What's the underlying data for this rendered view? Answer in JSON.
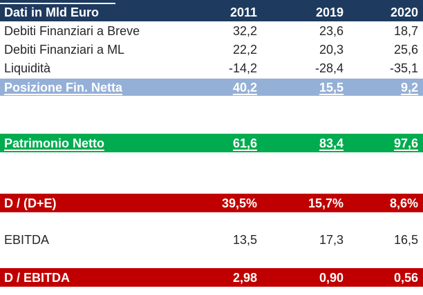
{
  "colors": {
    "navy": "#1e3a5f",
    "blue": "#95b0d7",
    "green": "#00ac4f",
    "red": "#c00000",
    "text": "#262626"
  },
  "table": {
    "header": {
      "label": "Dati in Mld Euro",
      "years": [
        "2011",
        "2019",
        "2020"
      ]
    },
    "rows": [
      {
        "label": "Debiti Finanziari a Breve",
        "values": [
          "32,2",
          "23,6",
          "18,7"
        ],
        "style": "plain",
        "underline": false
      },
      {
        "label": "Debiti Finanziari a ML",
        "values": [
          "22,2",
          "20,3",
          "25,6"
        ],
        "style": "plain",
        "underline": false
      },
      {
        "label": "Liquidità",
        "values": [
          "-14,2",
          "-28,4",
          "-35,1"
        ],
        "style": "plain",
        "underline": false
      },
      {
        "label": "Posizione Fin. Netta",
        "values": [
          "40,2",
          "15,5",
          "9,2"
        ],
        "style": "blue",
        "underline": true
      },
      {
        "label": "Patrimonio Netto",
        "values": [
          "61,6",
          "83,4",
          "97,6"
        ],
        "style": "green",
        "underline": true
      },
      {
        "label": "D / (D+E)",
        "values": [
          "39,5%",
          "15,7%",
          "8,6%"
        ],
        "style": "red",
        "underline": false
      },
      {
        "label": "EBITDA",
        "values": [
          "13,5",
          "17,3",
          "16,5"
        ],
        "style": "plain",
        "underline": false
      },
      {
        "label": "D / EBITDA",
        "values": [
          "2,98",
          "0,90",
          "0,56"
        ],
        "style": "red",
        "underline": false
      }
    ]
  },
  "chart_data": {
    "type": "table",
    "title": "Dati in Mld Euro",
    "categories": [
      "2011",
      "2019",
      "2020"
    ],
    "series": [
      {
        "name": "Debiti Finanziari a Breve",
        "values": [
          32.2,
          23.6,
          18.7
        ]
      },
      {
        "name": "Debiti Finanziari a ML",
        "values": [
          22.2,
          20.3,
          25.6
        ]
      },
      {
        "name": "Liquidità",
        "values": [
          -14.2,
          -28.4,
          -35.1
        ]
      },
      {
        "name": "Posizione Fin. Netta",
        "values": [
          40.2,
          15.5,
          9.2
        ]
      },
      {
        "name": "Patrimonio Netto",
        "values": [
          61.6,
          83.4,
          97.6
        ]
      },
      {
        "name": "D / (D+E)",
        "values": [
          39.5,
          15.7,
          8.6
        ],
        "unit": "%"
      },
      {
        "name": "EBITDA",
        "values": [
          13.5,
          17.3,
          16.5
        ]
      },
      {
        "name": "D / EBITDA",
        "values": [
          2.98,
          0.9,
          0.56
        ]
      }
    ]
  }
}
